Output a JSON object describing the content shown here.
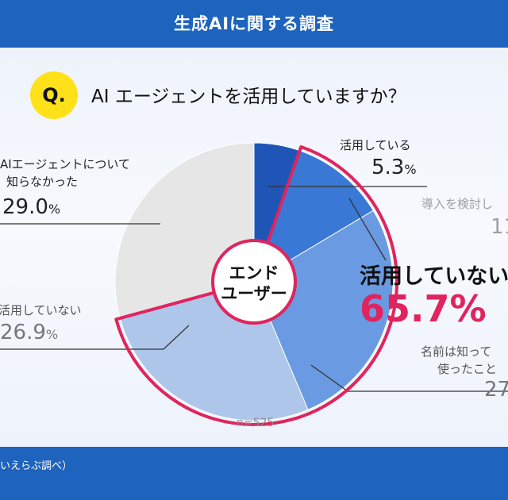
{
  "header": {
    "title": "生成AIに関する調査"
  },
  "question": {
    "badge": "Q.",
    "text": "AI エージェントを活用していますか？"
  },
  "chart_data": {
    "type": "pie",
    "title": "AI エージェントを活用していますか？",
    "center_label": [
      "エンド",
      "ユーザー"
    ],
    "sample_note": "n=525",
    "highlight": {
      "label": "活用していない",
      "value": "65.7%"
    },
    "slices": [
      {
        "label": "活用している",
        "value": 5.3,
        "value_text": "5.3",
        "unit": "%",
        "color": "#1f55b6"
      },
      {
        "label": "導入を検討し",
        "value": 11.0,
        "value_text": "11",
        "unit": "",
        "color": "#3a78d6"
      },
      {
        "label": "名前は知って / 使ったこと",
        "value": 27.0,
        "value_text": "27",
        "unit": "",
        "color": "#6a9be2"
      },
      {
        "label": "活用していない",
        "value": 26.9,
        "value_text": "26.9",
        "unit": "%",
        "color": "#aec6ea"
      },
      {
        "label": "AIエージェントについて知らなかった",
        "value": 29.0,
        "value_text": "29.0",
        "unit": "%",
        "color": "#e6e6e6"
      }
    ]
  },
  "labels": {
    "using": {
      "line1": "活用している",
      "value": "5.3",
      "unit": "%"
    },
    "considering": {
      "line1": "導入を検討し",
      "value": "11"
    },
    "known": {
      "line1": "名前は知って",
      "line2": "使ったこと",
      "value": "27"
    },
    "notused": {
      "line1": "活用していない",
      "value": "26.9",
      "unit": "%"
    },
    "unaware": {
      "line1": "AIエージェントについて",
      "line2": "知らなかった",
      "value": "29.0",
      "unit": "%"
    }
  },
  "footer": {
    "text": "いえらぶ調べ）"
  },
  "colors": {
    "brand_blue": "#1e63bd",
    "highlight_pink": "#e0245e",
    "badge_yellow": "#ffe11a"
  }
}
